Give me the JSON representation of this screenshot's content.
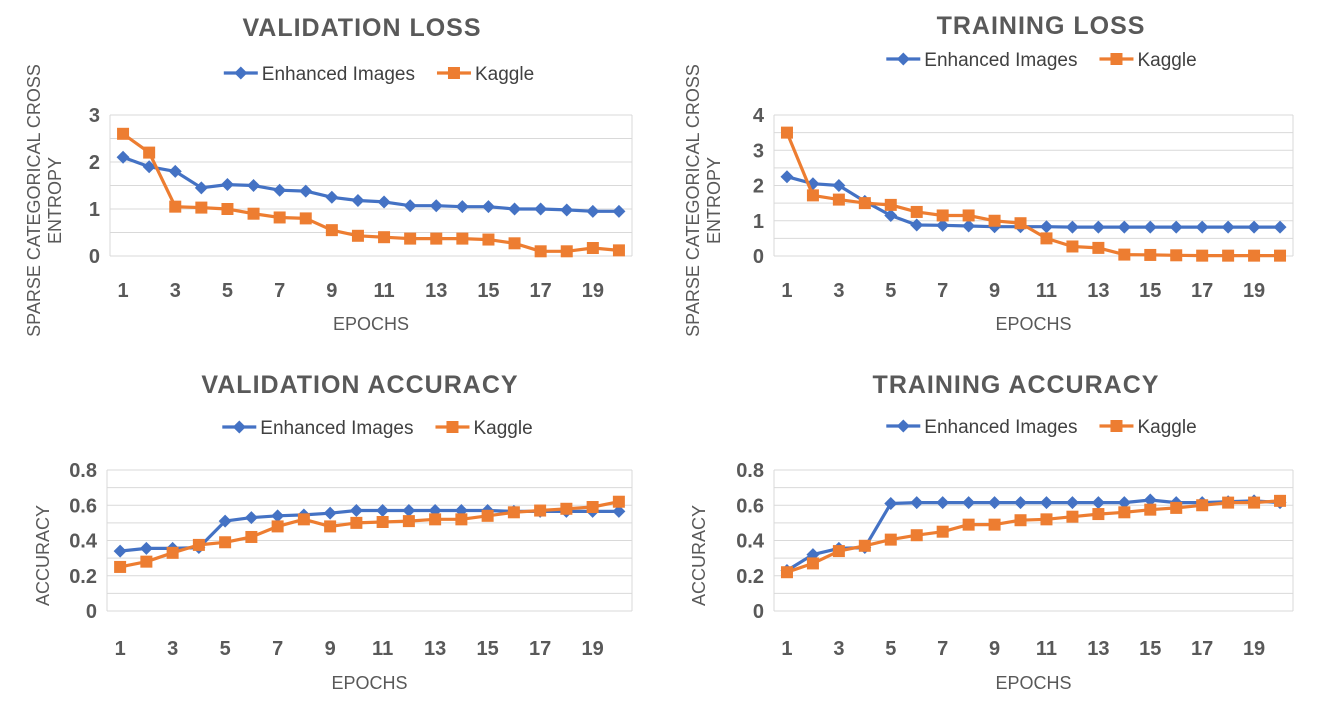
{
  "colors": {
    "enhanced": "#4472C4",
    "kaggle": "#ED7D31",
    "grid": "#D9D9D9",
    "text": "#595959"
  },
  "chart_data": [
    {
      "type": "line",
      "title": "VALIDATION LOSS",
      "xlabel": "EPOCHS",
      "ylabel_lines": [
        "SPARSE CATEGORICAL CROSS",
        "ENTROPY"
      ],
      "x": [
        1,
        2,
        3,
        4,
        5,
        6,
        7,
        8,
        9,
        10,
        11,
        12,
        13,
        14,
        15,
        16,
        17,
        18,
        19,
        20
      ],
      "x_tick_labels": [
        "1",
        "3",
        "5",
        "7",
        "9",
        "11",
        "13",
        "15",
        "17",
        "19"
      ],
      "y_tick_labels": [
        "0",
        "1",
        "2",
        "3"
      ],
      "ylim": [
        0,
        3
      ],
      "y_tick_step": 0.5,
      "legend_position": "top-center",
      "series": [
        {
          "name": "Enhanced Images",
          "marker": "diamond",
          "values": [
            2.1,
            1.9,
            1.8,
            1.45,
            1.52,
            1.5,
            1.4,
            1.38,
            1.25,
            1.18,
            1.15,
            1.07,
            1.07,
            1.05,
            1.05,
            1.0,
            1.0,
            0.98,
            0.95,
            0.95
          ]
        },
        {
          "name": "Kaggle",
          "marker": "square",
          "values": [
            2.6,
            2.2,
            1.05,
            1.03,
            1.0,
            0.9,
            0.82,
            0.8,
            0.55,
            0.43,
            0.4,
            0.37,
            0.37,
            0.37,
            0.35,
            0.27,
            0.1,
            0.1,
            0.17,
            0.12
          ]
        }
      ]
    },
    {
      "type": "line",
      "title": "TRAINING LOSS",
      "xlabel": "EPOCHS",
      "ylabel_lines": [
        "SPARSE CATEGORICAL CROSS",
        "ENTROPY"
      ],
      "x": [
        1,
        2,
        3,
        4,
        5,
        6,
        7,
        8,
        9,
        10,
        11,
        12,
        13,
        14,
        15,
        16,
        17,
        18,
        19,
        20
      ],
      "x_tick_labels": [
        "1",
        "3",
        "5",
        "7",
        "9",
        "11",
        "13",
        "15",
        "17",
        "19"
      ],
      "y_tick_labels": [
        "0",
        "1",
        "2",
        "3",
        "4"
      ],
      "ylim": [
        0,
        4
      ],
      "y_tick_step": 0.5,
      "legend_position": "top-center",
      "series": [
        {
          "name": "Enhanced Images",
          "marker": "diamond",
          "values": [
            2.25,
            2.05,
            2.0,
            1.55,
            1.15,
            0.88,
            0.87,
            0.85,
            0.83,
            0.83,
            0.83,
            0.82,
            0.82,
            0.82,
            0.82,
            0.82,
            0.82,
            0.82,
            0.82,
            0.82
          ]
        },
        {
          "name": "Kaggle",
          "marker": "square",
          "values": [
            3.5,
            1.72,
            1.6,
            1.5,
            1.45,
            1.25,
            1.15,
            1.15,
            1.0,
            0.93,
            0.5,
            0.27,
            0.23,
            0.04,
            0.03,
            0.02,
            0.01,
            0.01,
            0.01,
            0.01
          ]
        }
      ]
    },
    {
      "type": "line",
      "title": "VALIDATION ACCURACY",
      "xlabel": "EPOCHS",
      "ylabel_lines": [
        "ACCURACY"
      ],
      "x": [
        1,
        2,
        3,
        4,
        5,
        6,
        7,
        8,
        9,
        10,
        11,
        12,
        13,
        14,
        15,
        16,
        17,
        18,
        19,
        20
      ],
      "x_tick_labels": [
        "1",
        "3",
        "5",
        "7",
        "9",
        "11",
        "13",
        "15",
        "17",
        "19"
      ],
      "y_tick_labels": [
        "0",
        "0.2",
        "0.4",
        "0.6",
        "0.8"
      ],
      "ylim": [
        0,
        0.8
      ],
      "y_tick_step": 0.1,
      "legend_position": "top-center",
      "series": [
        {
          "name": "Enhanced Images",
          "marker": "diamond",
          "values": [
            0.34,
            0.355,
            0.355,
            0.36,
            0.51,
            0.53,
            0.54,
            0.545,
            0.555,
            0.57,
            0.57,
            0.57,
            0.57,
            0.57,
            0.57,
            0.565,
            0.565,
            0.565,
            0.565,
            0.565
          ]
        },
        {
          "name": "Kaggle",
          "marker": "square",
          "values": [
            0.25,
            0.28,
            0.33,
            0.375,
            0.39,
            0.42,
            0.48,
            0.52,
            0.48,
            0.5,
            0.505,
            0.51,
            0.52,
            0.52,
            0.54,
            0.56,
            0.57,
            0.58,
            0.59,
            0.62
          ]
        }
      ]
    },
    {
      "type": "line",
      "title": "TRAINING ACCURACY",
      "xlabel": "EPOCHS",
      "ylabel_lines": [
        "ACCURACY"
      ],
      "x": [
        1,
        2,
        3,
        4,
        5,
        6,
        7,
        8,
        9,
        10,
        11,
        12,
        13,
        14,
        15,
        16,
        17,
        18,
        19,
        20
      ],
      "x_tick_labels": [
        "1",
        "3",
        "5",
        "7",
        "9",
        "11",
        "13",
        "15",
        "17",
        "19"
      ],
      "y_tick_labels": [
        "0",
        "0.2",
        "0.4",
        "0.6",
        "0.8"
      ],
      "ylim": [
        0,
        0.8
      ],
      "y_tick_step": 0.1,
      "legend_position": "top-center",
      "series": [
        {
          "name": "Enhanced Images",
          "marker": "diamond",
          "values": [
            0.23,
            0.32,
            0.355,
            0.36,
            0.61,
            0.615,
            0.615,
            0.615,
            0.615,
            0.615,
            0.615,
            0.615,
            0.615,
            0.615,
            0.63,
            0.615,
            0.615,
            0.62,
            0.625,
            0.615
          ]
        },
        {
          "name": "Kaggle",
          "marker": "square",
          "values": [
            0.22,
            0.27,
            0.34,
            0.37,
            0.405,
            0.43,
            0.45,
            0.49,
            0.49,
            0.515,
            0.52,
            0.535,
            0.55,
            0.56,
            0.575,
            0.585,
            0.6,
            0.615,
            0.615,
            0.625
          ]
        }
      ]
    }
  ]
}
